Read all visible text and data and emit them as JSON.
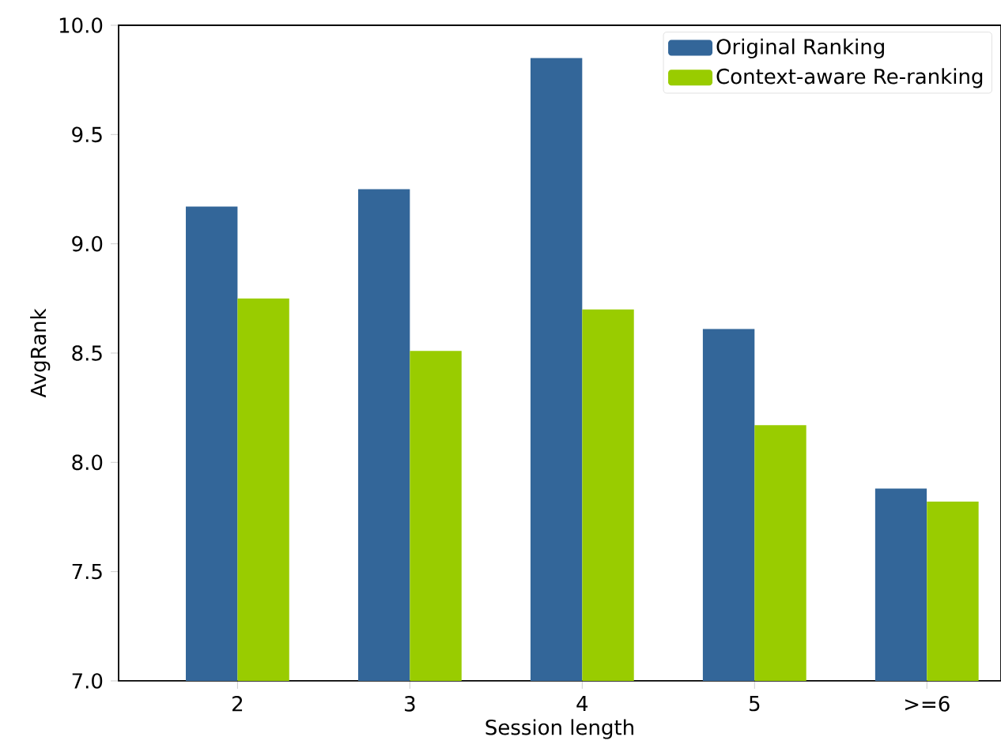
{
  "chart_data": {
    "type": "bar",
    "xlabel": "Session length",
    "ylabel": "AvgRank",
    "categories": [
      "2",
      "3",
      "4",
      "5",
      ">=6"
    ],
    "series": [
      {
        "name": "Original Ranking",
        "color": "#336699",
        "values": [
          9.17,
          9.25,
          9.85,
          8.61,
          7.88
        ]
      },
      {
        "name": "Context-aware Re-ranking",
        "color": "#99cc00",
        "values": [
          8.75,
          8.51,
          8.7,
          8.17,
          7.82
        ]
      }
    ],
    "ylim": [
      7.0,
      10.0
    ],
    "yticks": [
      {
        "value": 7.0,
        "label": "7.0"
      },
      {
        "value": 7.5,
        "label": "7.5"
      },
      {
        "value": 8.0,
        "label": "8.0"
      },
      {
        "value": 8.5,
        "label": "8.5"
      },
      {
        "value": 9.0,
        "label": "9.0"
      },
      {
        "value": 9.5,
        "label": "9.5"
      },
      {
        "value": 10.0,
        "label": "10.0"
      }
    ],
    "legend": "top right",
    "grid": false
  }
}
